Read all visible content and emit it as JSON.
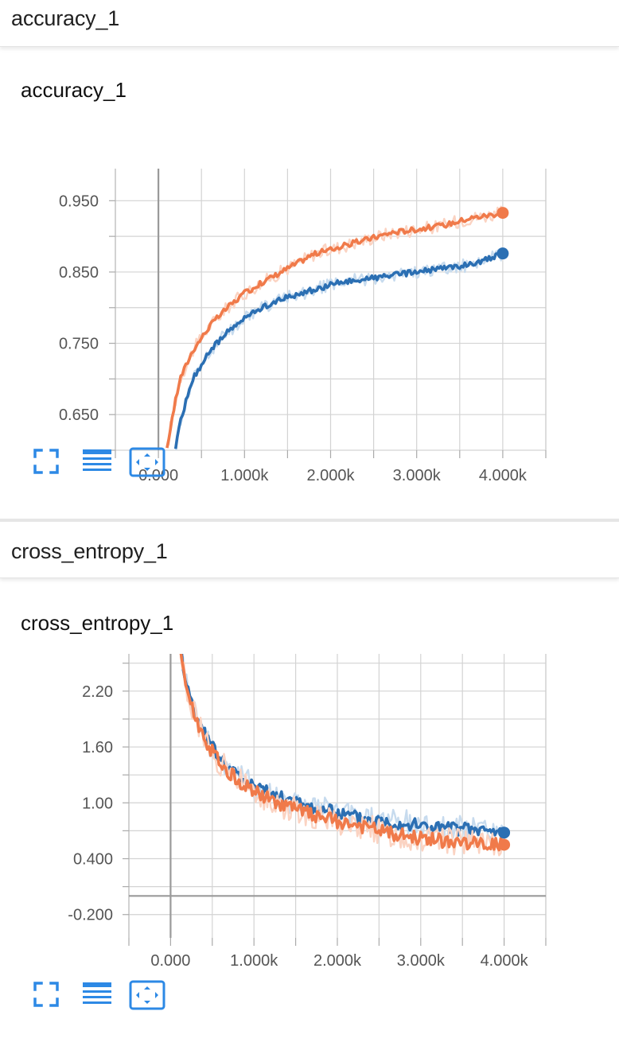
{
  "sections": [
    {
      "title": "accuracy_1"
    },
    {
      "title": "cross_entropy_1"
    }
  ],
  "colors": {
    "orange": "#f07a4a",
    "orange_light": "#fbd3c2",
    "blue": "#2b6fb3",
    "blue_light": "#c7dbee",
    "grid": "#d3d3d3",
    "zero_axis": "#9a9a9a",
    "icon": "#2d89e5"
  },
  "toolbar_icons": [
    "fullscreen-icon",
    "data-table-icon",
    "fit-domain-icon"
  ],
  "chart_data": [
    {
      "type": "line",
      "title": "accuracy_1",
      "xlabel": "",
      "ylabel": "",
      "xlim": [
        -500,
        4500
      ],
      "ylim": [
        0.6,
        0.995
      ],
      "xticks": [
        0,
        1000,
        2000,
        3000,
        4000
      ],
      "xtick_labels": [
        "0.000",
        "1.000k",
        "2.000k",
        "3.000k",
        "4.000k"
      ],
      "yticks": [
        0.65,
        0.75,
        0.85,
        0.95
      ],
      "ytick_labels": [
        "0.650",
        "0.750",
        "0.850",
        "0.950"
      ],
      "grid": true,
      "series": [
        {
          "color": "orange",
          "smoothed": [
            [
              100,
              0.6
            ],
            [
              150,
              0.64
            ],
            [
              250,
              0.7
            ],
            [
              400,
              0.74
            ],
            [
              600,
              0.775
            ],
            [
              800,
              0.8
            ],
            [
              1000,
              0.82
            ],
            [
              1200,
              0.835
            ],
            [
              1500,
              0.855
            ],
            [
              1800,
              0.875
            ],
            [
              2100,
              0.885
            ],
            [
              2400,
              0.895
            ],
            [
              2700,
              0.905
            ],
            [
              3000,
              0.91
            ],
            [
              3300,
              0.915
            ],
            [
              3600,
              0.925
            ],
            [
              4000,
              0.933
            ]
          ],
          "final": [
            4000,
            0.933
          ]
        },
        {
          "color": "blue",
          "smoothed": [
            [
              200,
              0.6
            ],
            [
              250,
              0.64
            ],
            [
              400,
              0.7
            ],
            [
              600,
              0.74
            ],
            [
              800,
              0.765
            ],
            [
              1000,
              0.785
            ],
            [
              1200,
              0.8
            ],
            [
              1500,
              0.815
            ],
            [
              1800,
              0.825
            ],
            [
              2100,
              0.835
            ],
            [
              2400,
              0.84
            ],
            [
              2700,
              0.845
            ],
            [
              3000,
              0.85
            ],
            [
              3300,
              0.855
            ],
            [
              3600,
              0.86
            ],
            [
              4000,
              0.875
            ]
          ],
          "final": [
            4000,
            0.876
          ]
        }
      ]
    },
    {
      "type": "line",
      "title": "cross_entropy_1",
      "xlabel": "",
      "ylabel": "",
      "xlim": [
        -500,
        4500
      ],
      "ylim": [
        -0.45,
        2.6
      ],
      "xticks": [
        0,
        1000,
        2000,
        3000,
        4000
      ],
      "xtick_labels": [
        "0.000",
        "1.000k",
        "2.000k",
        "3.000k",
        "4.000k"
      ],
      "yticks": [
        -0.2,
        0.4,
        1.0,
        1.6,
        2.2
      ],
      "ytick_labels": [
        "-0.200",
        "0.400",
        "1.00",
        "1.60",
        "2.20"
      ],
      "grid": true,
      "series": [
        {
          "color": "blue",
          "smoothed": [
            [
              130,
              2.6
            ],
            [
              200,
              2.25
            ],
            [
              300,
              1.95
            ],
            [
              400,
              1.75
            ],
            [
              500,
              1.6
            ],
            [
              600,
              1.48
            ],
            [
              700,
              1.38
            ],
            [
              800,
              1.3
            ],
            [
              1000,
              1.18
            ],
            [
              1200,
              1.1
            ],
            [
              1400,
              1.03
            ],
            [
              1600,
              0.98
            ],
            [
              1800,
              0.93
            ],
            [
              2000,
              0.89
            ],
            [
              2300,
              0.84
            ],
            [
              2600,
              0.8
            ],
            [
              2900,
              0.77
            ],
            [
              3200,
              0.74
            ],
            [
              3500,
              0.72
            ],
            [
              3800,
              0.7
            ],
            [
              4000,
              0.68
            ]
          ],
          "final": [
            4000,
            0.68
          ]
        },
        {
          "color": "orange",
          "smoothed": [
            [
              120,
              2.6
            ],
            [
              200,
              2.2
            ],
            [
              300,
              1.9
            ],
            [
              400,
              1.7
            ],
            [
              500,
              1.55
            ],
            [
              600,
              1.43
            ],
            [
              700,
              1.33
            ],
            [
              800,
              1.25
            ],
            [
              1000,
              1.12
            ],
            [
              1200,
              1.03
            ],
            [
              1400,
              0.96
            ],
            [
              1600,
              0.9
            ],
            [
              1800,
              0.85
            ],
            [
              2000,
              0.8
            ],
            [
              2300,
              0.74
            ],
            [
              2600,
              0.68
            ],
            [
              2900,
              0.63
            ],
            [
              3200,
              0.6
            ],
            [
              3500,
              0.57
            ],
            [
              3800,
              0.55
            ],
            [
              4000,
              0.55
            ]
          ],
          "final": [
            4000,
            0.55
          ]
        }
      ]
    }
  ]
}
